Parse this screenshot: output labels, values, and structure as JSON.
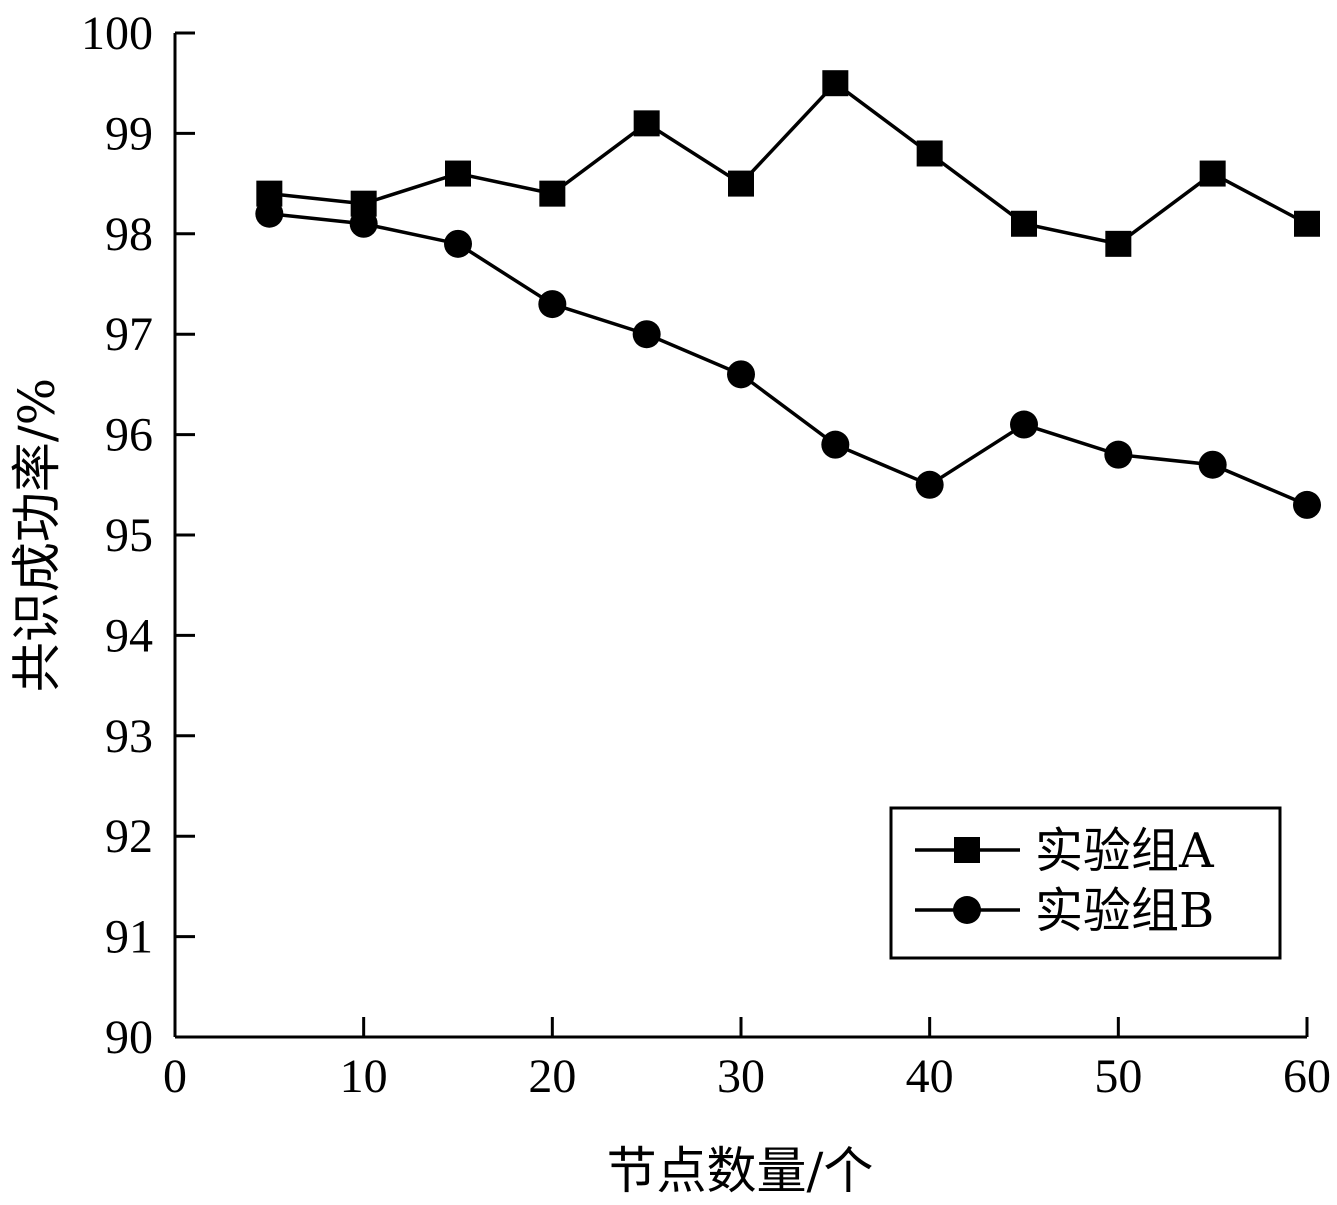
{
  "chart_data": {
    "type": "line",
    "xlabel": "节点数量/个",
    "ylabel": "共识成功率/%",
    "xlim": [
      0,
      60
    ],
    "ylim": [
      90,
      100
    ],
    "xticks": [
      0,
      10,
      20,
      30,
      40,
      50,
      60
    ],
    "yticks": [
      90,
      91,
      92,
      93,
      94,
      95,
      96,
      97,
      98,
      99,
      100
    ],
    "x": [
      5,
      10,
      15,
      20,
      25,
      30,
      35,
      40,
      45,
      50,
      55,
      60
    ],
    "series": [
      {
        "name": "实验组A",
        "marker": "square",
        "values": [
          98.4,
          98.3,
          98.6,
          98.4,
          99.1,
          98.5,
          99.5,
          98.8,
          98.1,
          97.9,
          98.6,
          98.1
        ]
      },
      {
        "name": "实验组B",
        "marker": "circle",
        "values": [
          98.2,
          98.1,
          97.9,
          97.3,
          97.0,
          96.6,
          95.9,
          95.5,
          96.1,
          95.8,
          95.7,
          95.3
        ]
      }
    ],
    "grid": false,
    "legend_position": "bottom-right",
    "colors": {
      "line": "#000000",
      "axis": "#000000",
      "background": "#ffffff"
    }
  }
}
